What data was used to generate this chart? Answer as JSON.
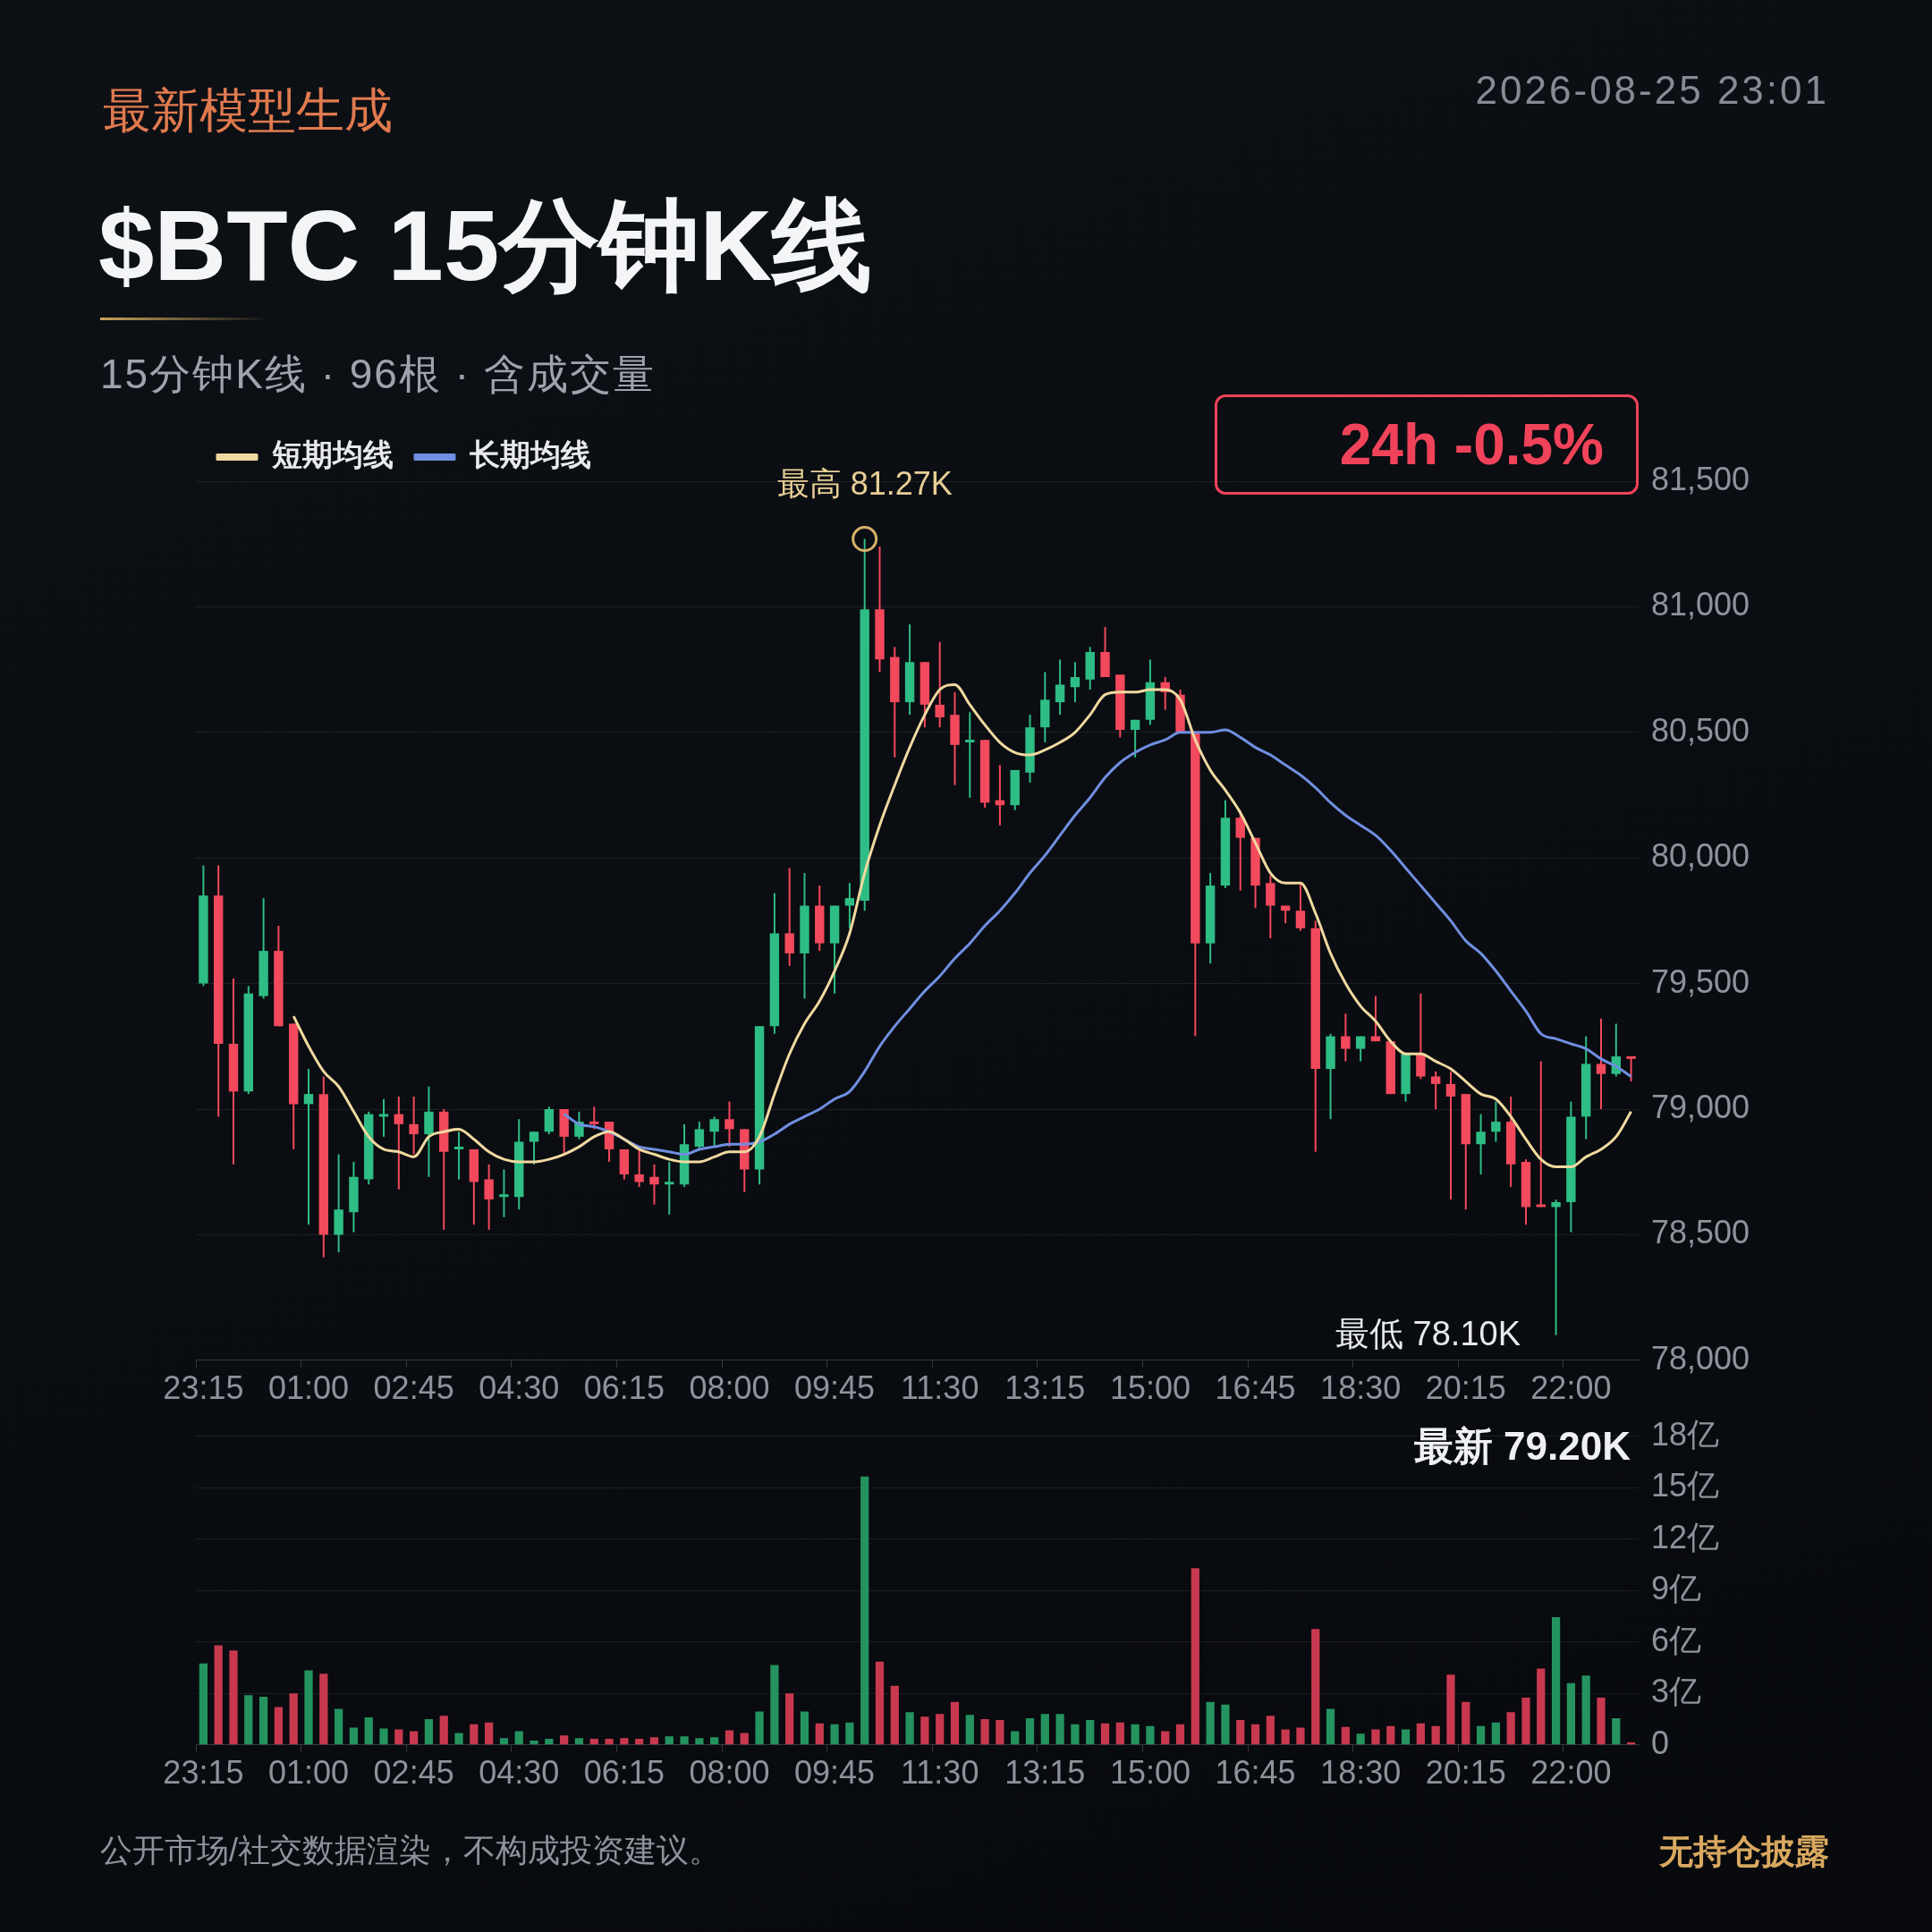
{
  "chart_data": [
    {
      "type": "candlestick",
      "title": "$BTC 15分钟K线",
      "subtitle": "15分钟K线 · 96根 · 含成交量",
      "categories": [
        "23:15",
        null,
        null,
        null,
        null,
        null,
        null,
        "01:00",
        null,
        null,
        null,
        null,
        null,
        null,
        "02:45",
        null,
        null,
        null,
        null,
        null,
        null,
        "04:30",
        null,
        null,
        null,
        null,
        null,
        null,
        "06:15",
        null,
        null,
        null,
        null,
        null,
        null,
        "08:00",
        null,
        null,
        null,
        null,
        null,
        null,
        "09:45",
        null,
        null,
        null,
        null,
        null,
        null,
        "11:30",
        null,
        null,
        null,
        null,
        null,
        null,
        "13:15",
        null,
        null,
        null,
        null,
        null,
        null,
        "15:00",
        null,
        null,
        null,
        null,
        null,
        null,
        "16:45",
        null,
        null,
        null,
        null,
        null,
        null,
        "18:30",
        null,
        null,
        null,
        null,
        null,
        null,
        "20:15",
        null,
        null,
        null,
        null,
        null,
        null,
        "22:00",
        null,
        null,
        null,
        null
      ],
      "ohlc": [
        [
          79500,
          79970,
          79490,
          79850
        ],
        [
          79850,
          79970,
          78970,
          79260
        ],
        [
          79260,
          79520,
          78780,
          79070
        ],
        [
          79070,
          79490,
          79060,
          79460
        ],
        [
          79450,
          79840,
          79440,
          79630
        ],
        [
          79630,
          79730,
          79330,
          79330
        ],
        [
          79340,
          79340,
          78840,
          79020
        ],
        [
          79020,
          79160,
          78540,
          79060
        ],
        [
          79060,
          79130,
          78410,
          78500
        ],
        [
          78500,
          78820,
          78430,
          78600
        ],
        [
          78590,
          78790,
          78510,
          78730
        ],
        [
          78720,
          78990,
          78700,
          78980
        ],
        [
          78970,
          79040,
          78890,
          78980
        ],
        [
          78980,
          79050,
          78680,
          78940
        ],
        [
          78940,
          79050,
          78820,
          78900
        ],
        [
          78900,
          79090,
          78730,
          78990
        ],
        [
          78990,
          79000,
          78520,
          78830
        ],
        [
          78840,
          78910,
          78720,
          78850
        ],
        [
          78840,
          78840,
          78540,
          78710
        ],
        [
          78720,
          78780,
          78520,
          78640
        ],
        [
          78650,
          78760,
          78570,
          78660
        ],
        [
          78650,
          78960,
          78600,
          78870
        ],
        [
          78870,
          78910,
          78780,
          78910
        ],
        [
          78910,
          79010,
          78900,
          79000
        ],
        [
          79000,
          79000,
          78820,
          78890
        ],
        [
          78890,
          78990,
          78880,
          78950
        ],
        [
          78950,
          79010,
          78920,
          78940
        ],
        [
          78950,
          78950,
          78790,
          78840
        ],
        [
          78840,
          78840,
          78720,
          78740
        ],
        [
          78740,
          78840,
          78690,
          78710
        ],
        [
          78730,
          78780,
          78620,
          78700
        ],
        [
          78700,
          78790,
          78580,
          78710
        ],
        [
          78700,
          78940,
          78690,
          78860
        ],
        [
          78850,
          78950,
          78840,
          78920
        ],
        [
          78910,
          78970,
          78850,
          78960
        ],
        [
          78960,
          79030,
          78850,
          78920
        ],
        [
          78920,
          78920,
          78670,
          78760
        ],
        [
          78760,
          79330,
          78700,
          79330
        ],
        [
          79330,
          79860,
          79300,
          79700
        ],
        [
          79700,
          79960,
          79570,
          79620
        ],
        [
          79620,
          79940,
          79440,
          79810
        ],
        [
          79810,
          79890,
          79630,
          79660
        ],
        [
          79660,
          79810,
          79460,
          79810
        ],
        [
          79810,
          79900,
          79720,
          79840
        ],
        [
          79830,
          81270,
          79790,
          80990
        ],
        [
          80990,
          81240,
          80740,
          80790
        ],
        [
          80800,
          80840,
          80400,
          80620
        ],
        [
          80620,
          80930,
          80570,
          80780
        ],
        [
          80780,
          80780,
          80520,
          80610
        ],
        [
          80610,
          80860,
          80520,
          80560
        ],
        [
          80570,
          80660,
          80290,
          80450
        ],
        [
          80460,
          80580,
          80240,
          80470
        ],
        [
          80470,
          80470,
          80200,
          80220
        ],
        [
          80230,
          80370,
          80130,
          80210
        ],
        [
          80210,
          80350,
          80190,
          80350
        ],
        [
          80340,
          80570,
          80300,
          80520
        ],
        [
          80520,
          80740,
          80460,
          80630
        ],
        [
          80620,
          80790,
          80570,
          80690
        ],
        [
          80680,
          80780,
          80620,
          80720
        ],
        [
          80710,
          80840,
          80670,
          80820
        ],
        [
          80820,
          80920,
          80720,
          80720
        ],
        [
          80730,
          80730,
          80480,
          80510
        ],
        [
          80510,
          80550,
          80400,
          80550
        ],
        [
          80550,
          80790,
          80530,
          80700
        ],
        [
          80700,
          80720,
          80590,
          80660
        ],
        [
          80650,
          80670,
          80500,
          80500
        ],
        [
          80500,
          80500,
          79290,
          79660
        ],
        [
          79660,
          79940,
          79580,
          79890
        ],
        [
          79890,
          80230,
          79880,
          80160
        ],
        [
          80160,
          80190,
          79870,
          80080
        ],
        [
          80080,
          80080,
          79800,
          79890
        ],
        [
          79900,
          79930,
          79680,
          79810
        ],
        [
          79810,
          79810,
          79740,
          79790
        ],
        [
          79790,
          79900,
          79710,
          79720
        ],
        [
          79720,
          79750,
          78830,
          79160
        ],
        [
          79160,
          79300,
          78960,
          79290
        ],
        [
          79290,
          79380,
          79190,
          79240
        ],
        [
          79240,
          79290,
          79190,
          79290
        ],
        [
          79290,
          79450,
          79270,
          79270
        ],
        [
          79270,
          79270,
          79060,
          79060
        ],
        [
          79060,
          79220,
          79030,
          79220
        ],
        [
          79220,
          79460,
          79120,
          79130
        ],
        [
          79130,
          79150,
          79000,
          79100
        ],
        [
          79100,
          79150,
          78640,
          79050
        ],
        [
          79060,
          79060,
          78600,
          78860
        ],
        [
          78860,
          78980,
          78740,
          78910
        ],
        [
          78910,
          79030,
          78870,
          78950
        ],
        [
          78950,
          79050,
          78690,
          78780
        ],
        [
          78790,
          78800,
          78540,
          78610
        ],
        [
          78620,
          79190,
          78610,
          78610
        ],
        [
          78610,
          78640,
          78100,
          78630
        ],
        [
          78630,
          79030,
          78510,
          78970
        ],
        [
          78970,
          79290,
          78880,
          79180
        ],
        [
          79180,
          79360,
          79000,
          79140
        ],
        [
          79140,
          79340,
          79130,
          79210
        ],
        [
          79210,
          79210,
          79110,
          79200
        ]
      ],
      "colors": [
        "#2ebd85",
        "#f2495c",
        "#f2495c",
        "#2ebd85",
        "#2ebd85",
        "#f2495c",
        "#f2495c",
        "#2ebd85",
        "#f2495c",
        "#2ebd85",
        "#2ebd85",
        "#2ebd85",
        "#2ebd85",
        "#f2495c",
        "#f2495c",
        "#2ebd85",
        "#f2495c",
        "#2ebd85",
        "#f2495c",
        "#f2495c",
        "#2ebd85",
        "#2ebd85",
        "#2ebd85",
        "#2ebd85",
        "#f2495c",
        "#2ebd85",
        "#f2495c",
        "#f2495c",
        "#f2495c",
        "#f2495c",
        "#f2495c",
        "#2ebd85",
        "#2ebd85",
        "#2ebd85",
        "#2ebd85",
        "#f2495c",
        "#f2495c",
        "#2ebd85",
        "#2ebd85",
        "#f2495c",
        "#2ebd85",
        "#f2495c",
        "#2ebd85",
        "#2ebd85",
        "#2ebd85",
        "#f2495c",
        "#f2495c",
        "#2ebd85",
        "#f2495c",
        "#f2495c",
        "#f2495c",
        "#2ebd85",
        "#f2495c",
        "#f2495c",
        "#2ebd85",
        "#2ebd85",
        "#2ebd85",
        "#2ebd85",
        "#2ebd85",
        "#2ebd85",
        "#f2495c",
        "#f2495c",
        "#2ebd85",
        "#2ebd85",
        "#f2495c",
        "#f2495c",
        "#f2495c",
        "#2ebd85",
        "#2ebd85",
        "#f2495c",
        "#f2495c",
        "#f2495c",
        "#f2495c",
        "#f2495c",
        "#f2495c",
        "#2ebd85",
        "#f2495c",
        "#2ebd85",
        "#f2495c",
        "#f2495c",
        "#2ebd85",
        "#f2495c",
        "#f2495c",
        "#f2495c",
        "#f2495c",
        "#2ebd85",
        "#2ebd85",
        "#f2495c",
        "#f2495c",
        "#f2495c",
        "#2ebd85",
        "#2ebd85",
        "#2ebd85",
        "#f2495c",
        "#2ebd85",
        "#f2495c"
      ],
      "series": [
        {
          "name": "短期均线",
          "type": "line",
          "color": "#f0d9a0",
          "values": [
            null,
            null,
            null,
            null,
            null,
            null,
            79370,
            79250,
            79150,
            79090,
            78990,
            78890,
            78840,
            78830,
            78810,
            78890,
            78910,
            78920,
            78880,
            78830,
            78800,
            78790,
            78790,
            78800,
            78820,
            78850,
            78890,
            78910,
            78880,
            78840,
            78820,
            78800,
            78790,
            78790,
            78810,
            78830,
            78830,
            78890,
            79060,
            79220,
            79340,
            79430,
            79550,
            79700,
            79940,
            80130,
            80290,
            80440,
            80570,
            80670,
            80690,
            80610,
            80530,
            80460,
            80420,
            80410,
            80430,
            80460,
            80500,
            80570,
            80650,
            80660,
            80660,
            80670,
            80670,
            80630,
            80470,
            80350,
            80270,
            80180,
            80060,
            79940,
            79900,
            79900,
            79780,
            79620,
            79500,
            79410,
            79350,
            79270,
            79220,
            79220,
            79190,
            79160,
            79110,
            79060,
            79040,
            78970,
            78880,
            78800,
            78770,
            78770,
            78810,
            78840,
            78890,
            78990
          ]
        },
        {
          "name": "长期均线",
          "type": "line",
          "color": "#6f8fe0",
          "values": [
            null,
            null,
            null,
            null,
            null,
            null,
            null,
            null,
            null,
            null,
            null,
            null,
            null,
            null,
            null,
            null,
            null,
            null,
            null,
            null,
            null,
            null,
            null,
            null,
            78980,
            78940,
            78930,
            78910,
            78880,
            78850,
            78840,
            78830,
            78820,
            78840,
            78850,
            78860,
            78860,
            78870,
            78900,
            78940,
            78970,
            79000,
            79040,
            79070,
            79150,
            79250,
            79330,
            79400,
            79470,
            79530,
            79600,
            79660,
            79730,
            79790,
            79860,
            79940,
            80010,
            80090,
            80170,
            80240,
            80320,
            80380,
            80420,
            80450,
            80470,
            80500,
            80500,
            80500,
            80510,
            80480,
            80440,
            80410,
            80370,
            80330,
            80280,
            80220,
            80170,
            80130,
            80090,
            80030,
            79960,
            79890,
            79820,
            79750,
            79670,
            79620,
            79550,
            79470,
            79390,
            79300,
            79280,
            79260,
            79240,
            79200,
            79170,
            79130
          ]
        }
      ],
      "ylim": [
        78000,
        81500
      ],
      "yticks": [
        {
          "value": 78000,
          "label": "78,000"
        },
        {
          "value": 78500,
          "label": "78,500"
        },
        {
          "value": 79000,
          "label": "79,000"
        },
        {
          "value": 79500,
          "label": "79,500"
        },
        {
          "value": 80000,
          "label": "80,000"
        },
        {
          "value": 80500,
          "label": "80,500"
        },
        {
          "value": 81000,
          "label": "81,000"
        },
        {
          "value": 81500,
          "label": "81,500"
        }
      ],
      "grid": "y",
      "legend": "top left",
      "annotations": [
        "最新模型生成",
        "2026-08-25 23:01",
        "24h -0.5%",
        {
          "text": "最高 81.27K",
          "y": 81270
        },
        "最低 78.10K",
        "最新 79.20K",
        "公开市场/社交数据渲染，不构成投资建议。",
        "无持仓披露"
      ]
    },
    {
      "type": "bar",
      "categories": [
        "23:15",
        null,
        null,
        null,
        null,
        null,
        null,
        "01:00",
        null,
        null,
        null,
        null,
        null,
        null,
        "02:45",
        null,
        null,
        null,
        null,
        null,
        null,
        "04:30",
        null,
        null,
        null,
        null,
        null,
        null,
        "06:15",
        null,
        null,
        null,
        null,
        null,
        null,
        "08:00",
        null,
        null,
        null,
        null,
        null,
        null,
        "09:45",
        null,
        null,
        null,
        null,
        null,
        null,
        "11:30",
        null,
        null,
        null,
        null,
        null,
        null,
        "13:15",
        null,
        null,
        null,
        null,
        null,
        null,
        "15:00",
        null,
        null,
        null,
        null,
        null,
        null,
        "16:45",
        null,
        null,
        null,
        null,
        null,
        null,
        "18:30",
        null,
        null,
        null,
        null,
        null,
        null,
        "20:15",
        null,
        null,
        null,
        null,
        null,
        null,
        "22:00",
        null,
        null,
        null,
        null
      ],
      "values": [
        4.75,
        5.8,
        5.5,
        2.9,
        2.8,
        2.2,
        3.0,
        4.35,
        4.15,
        2.1,
        1.0,
        1.6,
        0.95,
        0.9,
        0.8,
        1.5,
        1.7,
        0.7,
        1.2,
        1.3,
        0.4,
        0.8,
        0.25,
        0.35,
        0.55,
        0.4,
        0.35,
        0.35,
        0.4,
        0.35,
        0.45,
        0.5,
        0.5,
        0.4,
        0.45,
        0.85,
        0.7,
        1.95,
        4.65,
        3.0,
        1.95,
        1.25,
        1.2,
        1.3,
        15.65,
        4.85,
        3.45,
        1.9,
        1.65,
        1.8,
        2.5,
        1.75,
        1.5,
        1.45,
        0.8,
        1.55,
        1.8,
        1.8,
        1.2,
        1.45,
        1.25,
        1.3,
        1.2,
        1.1,
        0.8,
        1.2,
        10.3,
        2.5,
        2.35,
        1.45,
        1.2,
        1.7,
        0.9,
        1.0,
        6.75,
        2.1,
        1.05,
        0.65,
        0.9,
        1.1,
        0.9,
        1.25,
        1.1,
        4.1,
        2.5,
        1.1,
        1.3,
        1.9,
        2.75,
        4.45,
        7.45,
        3.6,
        4.05,
        2.75,
        1.55,
        0.15
      ],
      "colors": [
        "#24935f",
        "#c8394f",
        "#c8394f",
        "#24935f",
        "#24935f",
        "#c8394f",
        "#c8394f",
        "#24935f",
        "#c8394f",
        "#24935f",
        "#24935f",
        "#24935f",
        "#24935f",
        "#c8394f",
        "#c8394f",
        "#24935f",
        "#c8394f",
        "#24935f",
        "#c8394f",
        "#c8394f",
        "#24935f",
        "#24935f",
        "#24935f",
        "#24935f",
        "#c8394f",
        "#24935f",
        "#c8394f",
        "#c8394f",
        "#c8394f",
        "#c8394f",
        "#c8394f",
        "#24935f",
        "#24935f",
        "#24935f",
        "#24935f",
        "#c8394f",
        "#c8394f",
        "#24935f",
        "#24935f",
        "#c8394f",
        "#24935f",
        "#c8394f",
        "#24935f",
        "#24935f",
        "#24935f",
        "#c8394f",
        "#c8394f",
        "#24935f",
        "#c8394f",
        "#c8394f",
        "#c8394f",
        "#24935f",
        "#c8394f",
        "#c8394f",
        "#24935f",
        "#24935f",
        "#24935f",
        "#24935f",
        "#24935f",
        "#24935f",
        "#c8394f",
        "#c8394f",
        "#24935f",
        "#24935f",
        "#c8394f",
        "#c8394f",
        "#c8394f",
        "#24935f",
        "#24935f",
        "#c8394f",
        "#c8394f",
        "#c8394f",
        "#c8394f",
        "#c8394f",
        "#c8394f",
        "#24935f",
        "#c8394f",
        "#24935f",
        "#c8394f",
        "#c8394f",
        "#24935f",
        "#c8394f",
        "#c8394f",
        "#c8394f",
        "#c8394f",
        "#24935f",
        "#24935f",
        "#c8394f",
        "#c8394f",
        "#c8394f",
        "#24935f",
        "#24935f",
        "#24935f",
        "#c8394f",
        "#24935f",
        "#c8394f"
      ],
      "ylim": [
        0,
        18
      ],
      "yticks": [
        0,
        {
          "value": 3,
          "label": "3亿"
        },
        {
          "value": 6,
          "label": "6亿"
        },
        {
          "value": 9,
          "label": "9亿"
        },
        {
          "value": 12,
          "label": "12亿"
        },
        {
          "value": 15,
          "label": "15亿"
        },
        {
          "value": 18,
          "label": "18亿"
        }
      ],
      "grid": "y"
    }
  ]
}
